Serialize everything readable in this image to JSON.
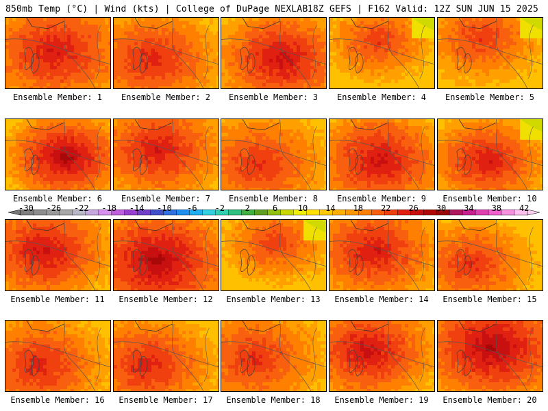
{
  "header": {
    "left": "850mb Temp (°C) | Wind (kts) | College of DuPage NEXLAB",
    "right": "18Z GEFS | F162 Valid: 12Z SUN JUN 15 2025"
  },
  "panels": [
    {
      "label": "Ensemble Member: 1"
    },
    {
      "label": "Ensemble Member: 2"
    },
    {
      "label": "Ensemble Member: 3"
    },
    {
      "label": "Ensemble Member: 4"
    },
    {
      "label": "Ensemble Member: 5"
    },
    {
      "label": "Ensemble Member: 6"
    },
    {
      "label": "Ensemble Member: 7"
    },
    {
      "label": "Ensemble Member: 8"
    },
    {
      "label": "Ensemble Member: 9"
    },
    {
      "label": "Ensemble Member: 10"
    },
    {
      "label": "Ensemble Member: 11"
    },
    {
      "label": "Ensemble Member: 12"
    },
    {
      "label": "Ensemble Member: 13"
    },
    {
      "label": "Ensemble Member: 14"
    },
    {
      "label": "Ensemble Member: 15"
    },
    {
      "label": "Ensemble Member: 16"
    },
    {
      "label": "Ensemble Member: 17"
    },
    {
      "label": "Ensemble Member: 18"
    },
    {
      "label": "Ensemble Member: 19"
    },
    {
      "label": "Ensemble Member: 20"
    }
  ],
  "colorbar": {
    "ticks": [
      "-30",
      "-26",
      "-22",
      "-18",
      "-14",
      "-10",
      "-6",
      "-2",
      "2",
      "6",
      "10",
      "14",
      "18",
      "22",
      "26",
      "30",
      "34",
      "38",
      "42"
    ],
    "colors": [
      "#7f7f7f",
      "#8c8c8c",
      "#9a9a9a",
      "#a8a8a8",
      "#b8b8c8",
      "#c8a8e0",
      "#d890f0",
      "#c060e0",
      "#9a40d0",
      "#7040c8",
      "#4050c8",
      "#3070e0",
      "#2090f0",
      "#20b0f0",
      "#30d0e0",
      "#30d0b0",
      "#30c080",
      "#40b040",
      "#60a020",
      "#90c010",
      "#c8d800",
      "#f0f000",
      "#ffe000",
      "#ffc800",
      "#ffb000",
      "#ff9800",
      "#ff8000",
      "#f86010",
      "#f04010",
      "#e02010",
      "#c81010",
      "#b00808",
      "#980808",
      "#b01860",
      "#c82090",
      "#e040b0",
      "#f060d0",
      "#f890e0",
      "#ffc0f0"
    ]
  }
}
